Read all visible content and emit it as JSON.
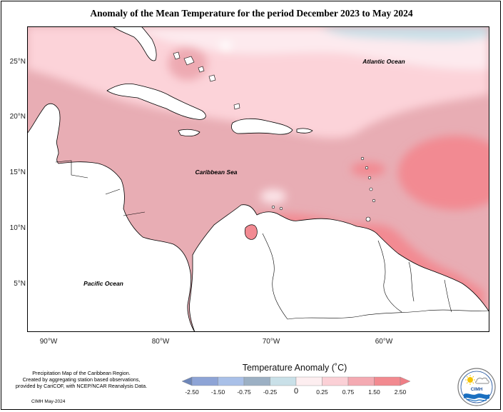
{
  "title": "Anomaly of the Mean Temperature for the period December 2023 to May 2024",
  "map_labels": {
    "atlantic": "Atlantic Ocean",
    "caribbean": "Caribbean Sea",
    "pacific": "Pacific Ocean"
  },
  "axes": {
    "lat_ticks": [
      "25°N",
      "20°N",
      "15°N",
      "10°N",
      "5°N"
    ],
    "lon_ticks": [
      "90°W",
      "80°W",
      "70°W",
      "60°W"
    ]
  },
  "legend": {
    "title": "Temperature Anomaly (˚C)",
    "ticks": [
      "-2.50",
      "-1.50",
      "-0.75",
      "-0.25",
      "0",
      "0.25",
      "0.75",
      "1.50",
      "2.50"
    ],
    "colors": [
      "#6e86b8",
      "#8ea4d6",
      "#a9c0e8",
      "#9cb0c4",
      "#c9e0e8",
      "#fdeef0",
      "#fbd0d6",
      "#f4aab2",
      "#f28a90",
      "#ef7e86"
    ]
  },
  "credit": {
    "line1": "Precipitation Map of the Caribbean Region.",
    "line2": "Created by aggregating station based observations,",
    "line3": "provided by CariCOF, with NCEP/NCAR Reanalysis Data.",
    "date": "CIMH May-2024"
  },
  "logo_text": "CIMH"
}
